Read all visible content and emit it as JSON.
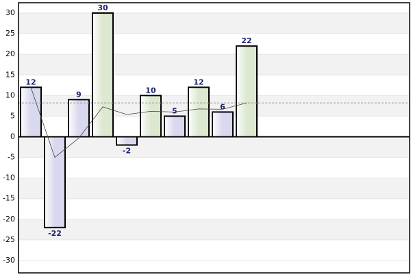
{
  "chart_data": {
    "type": "bar",
    "categories": [
      null,
      null,
      null,
      null,
      null,
      null,
      null,
      null,
      null,
      null
    ],
    "values": [
      12,
      -22,
      9,
      30,
      -2,
      10,
      5,
      12,
      6,
      22
    ],
    "colors": [
      "#d8d8ee",
      "#d8d8ee",
      "#d8d8ee",
      "#dce8d0",
      "#d8d8ee",
      "#dce8d0",
      "#d8d8ee",
      "#dce8d0",
      "#d8d8ee",
      "#dce8d0"
    ],
    "running_average": {
      "values": [
        12,
        -5,
        -0.33,
        7.25,
        5.4,
        6.17,
        6,
        6.75,
        6.67,
        8.2
      ],
      "color": "#444444"
    },
    "average_line": {
      "value": 8.2,
      "color": "#999999"
    },
    "ylim": [
      -33,
      32.5
    ],
    "yticks": [
      -30,
      -25,
      -20,
      -15,
      -10,
      -5,
      0,
      5,
      10,
      15,
      20,
      25,
      30
    ],
    "grid": true
  }
}
